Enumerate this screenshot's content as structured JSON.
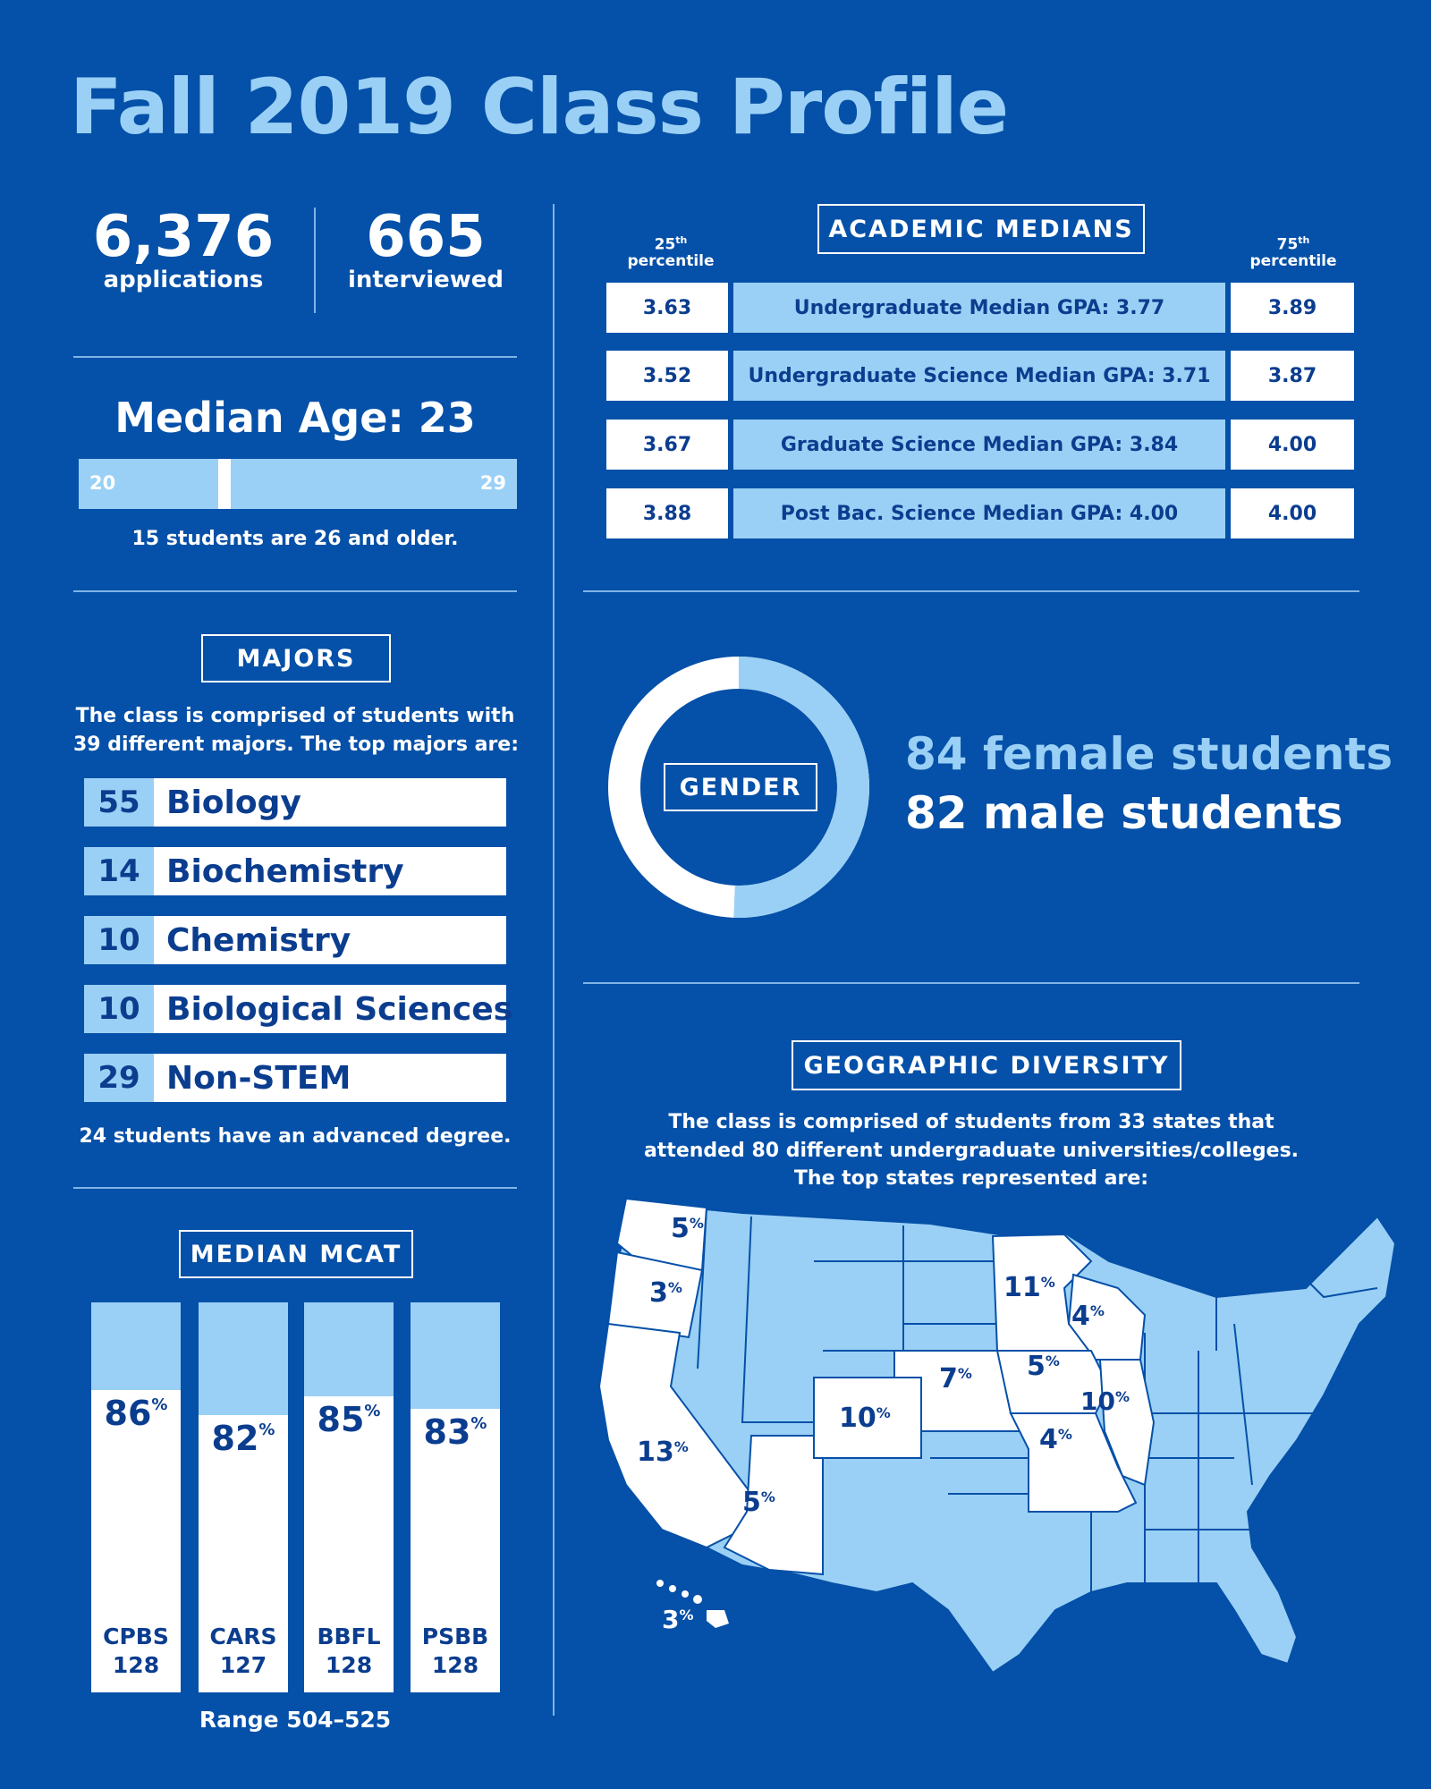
{
  "title": "Fall 2019 Class Profile",
  "applications": {
    "number": "6,376",
    "label": "applications"
  },
  "interviewed": {
    "number": "665",
    "label": "interviewed"
  },
  "median_age": {
    "label": "Median Age: 23",
    "range_min": "20",
    "range_max": "29",
    "value": 23,
    "note": "15 students are 26 and older."
  },
  "academic_medians": {
    "heading": "ACADEMIC MEDIANS",
    "p25_label": [
      "25",
      "th",
      "percentile"
    ],
    "p75_label": [
      "75",
      "th",
      "percentile"
    ],
    "rows": [
      {
        "p25": "3.63",
        "label": "Undergraduate Median GPA: 3.77",
        "p75": "3.89"
      },
      {
        "p25": "3.52",
        "label": "Undergraduate Science Median GPA: 3.71",
        "p75": "3.87"
      },
      {
        "p25": "3.67",
        "label": "Graduate Science Median GPA: 3.84",
        "p75": "4.00"
      },
      {
        "p25": "3.88",
        "label": "Post Bac. Science Median GPA: 4.00",
        "p75": "4.00"
      }
    ]
  },
  "majors": {
    "heading": "MAJORS",
    "intro_line1": "The class is comprised of students with",
    "intro_line2": "39 different majors. The top majors are:",
    "items": [
      {
        "count": "55",
        "name": "Biology"
      },
      {
        "count": "14",
        "name": "Biochemistry"
      },
      {
        "count": "10",
        "name": "Chemistry"
      },
      {
        "count": "10",
        "name": "Biological Sciences"
      },
      {
        "count": "29",
        "name": "Non-STEM"
      }
    ],
    "note": "24 students have an advanced degree."
  },
  "gender": {
    "heading": "GENDER",
    "female": "84 female students",
    "male": "82 male students",
    "female_count": 84,
    "male_count": 82,
    "colors": {
      "female": "#9ad0f5",
      "male": "#ffffff"
    }
  },
  "mcat": {
    "heading": "MEDIAN MCAT",
    "sections": [
      {
        "pct": "86",
        "name": "CPBS",
        "score": "128"
      },
      {
        "pct": "82",
        "name": "CARS",
        "score": "127"
      },
      {
        "pct": "85",
        "name": "BBFL",
        "score": "128"
      },
      {
        "pct": "83",
        "name": "PSBB",
        "score": "128"
      }
    ],
    "pct_sign": "%",
    "range": "Range 504–525"
  },
  "geo": {
    "heading": "GEOGRAPHIC DIVERSITY",
    "intro_line1": "The class is comprised of students from 33 states that",
    "intro_line2": "attended 80 different undergraduate universities/colleges.",
    "intro_line3": "The top states represented are:",
    "states": [
      {
        "state": "Washington",
        "pct": "5"
      },
      {
        "state": "Oregon",
        "pct": "3"
      },
      {
        "state": "California",
        "pct": "13"
      },
      {
        "state": "Arizona",
        "pct": "5"
      },
      {
        "state": "Colorado",
        "pct": "10"
      },
      {
        "state": "Nebraska",
        "pct": "7"
      },
      {
        "state": "Minnesota",
        "pct": "11"
      },
      {
        "state": "Wisconsin",
        "pct": "4"
      },
      {
        "state": "Iowa",
        "pct": "5"
      },
      {
        "state": "Illinois",
        "pct": "10"
      },
      {
        "state": "Missouri",
        "pct": "4"
      },
      {
        "state": "Hawaii",
        "pct": "3"
      }
    ],
    "pct_sign": "%",
    "colors": {
      "highlight": "#ffffff",
      "other": "#9ad0f5"
    }
  }
}
